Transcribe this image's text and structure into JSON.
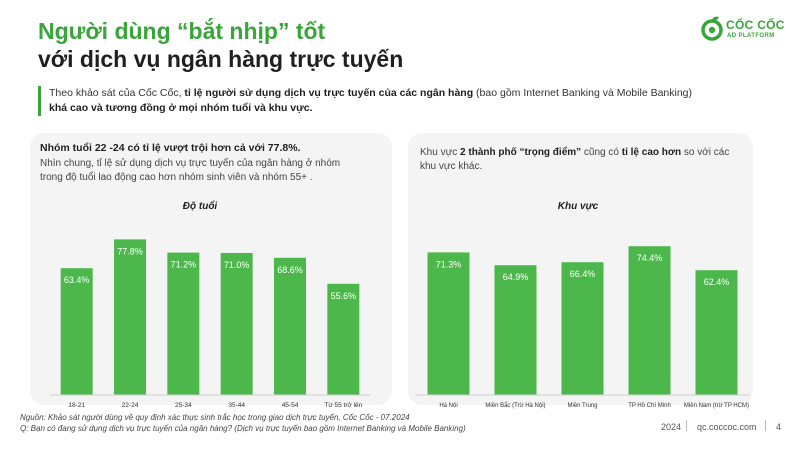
{
  "header": {
    "title_line1": "Người dùng “bắt nhịp” tốt",
    "title_line2": "với dịch vụ ngân hàng trực tuyến",
    "logo_text": "CỐC CỐC",
    "logo_subtext": "AD PLATFORM"
  },
  "intro": {
    "part1": "Theo khảo sát của Cốc Cốc, ",
    "bold1": "tỉ lệ người sử dụng dịch vụ trực tuyến của các ngân hàng",
    "part2": " (bao gồm Internet Banking và Mobile Banking)",
    "bold2": "khá cao và tương đồng ở mọi nhóm tuổi và khu vực."
  },
  "left_panel": {
    "heading": "Nhóm tuổi 22 -24 có tỉ lệ vượt trội hơn cả với 77.8%.",
    "body": "Nhìn chung, tỉ lệ sử dụng dịch vụ trực tuyến của ngân hàng ở nhóm trong độ tuổi lao động cao hơn nhóm sinh viên và nhóm 55+ ."
  },
  "right_panel": {
    "body1": "Khu vực ",
    "bold1": "2 thành phố “trọng điểm”",
    "body2": " cũng có ",
    "bold2": "tỉ lệ cao hơn",
    "body3": " so với các khu vực khác."
  },
  "chart_data": [
    {
      "type": "bar",
      "title": "Độ tuổi",
      "categories": [
        "18-21",
        "22-24",
        "25-34",
        "35-44",
        "45-54",
        "Từ 55 trở lên"
      ],
      "values": [
        63.4,
        77.8,
        71.2,
        71.0,
        68.6,
        55.6
      ],
      "value_labels": [
        "63.4%",
        "77.8%",
        "71.2%",
        "71.0%",
        "68.6%",
        "55.6%"
      ],
      "ylim": [
        0,
        85
      ],
      "color": "#4cb84c"
    },
    {
      "type": "bar",
      "title": "Khu vực",
      "categories": [
        "Hà Nội",
        "Miền Bắc (Trừ Hà Nội)",
        "Miền Trung",
        "TP Hồ Chí Minh",
        "Miền Nam (trừ TP HCM)"
      ],
      "values": [
        71.3,
        64.9,
        66.4,
        74.4,
        62.4
      ],
      "value_labels": [
        "71.3%",
        "64.9%",
        "66.4%",
        "74.4%",
        "62.4%"
      ],
      "ylim": [
        0,
        85
      ],
      "color": "#4cb84c"
    }
  ],
  "footer": {
    "source": "Nguồn: Khảo sát người dùng về quy định xác thực sinh trắc học trong giao dịch trực tuyến, Cốc Cốc - 07.2024",
    "question": "Q: Bạn có đang sử dụng dịch vụ trực tuyến của ngân hàng? (Dịch vụ trực tuyến bao gồm Internet Banking và Mobile Banking)",
    "year": "2024",
    "site": "qc.coccoc.com",
    "page": "4"
  }
}
